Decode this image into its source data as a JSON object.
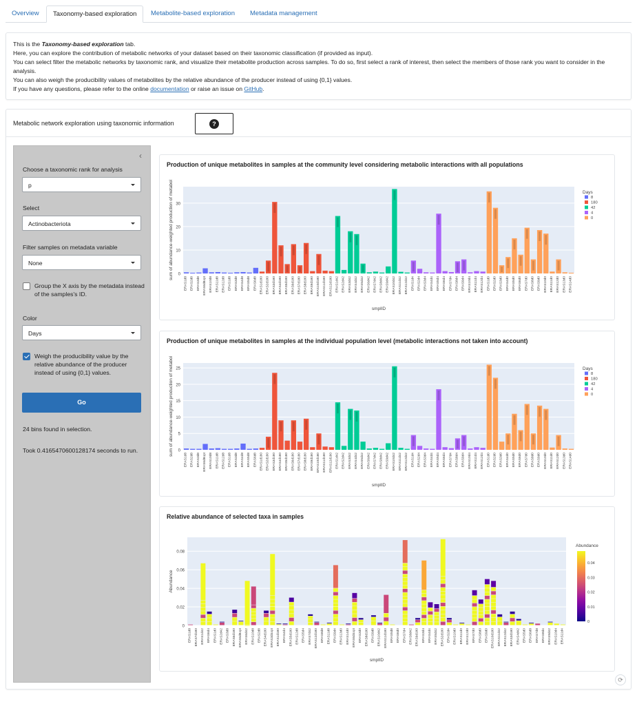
{
  "tabs": [
    {
      "label": "Overview",
      "active": false
    },
    {
      "label": "Taxonomy-based exploration",
      "active": true
    },
    {
      "label": "Metabolite-based exploration",
      "active": false
    },
    {
      "label": "Metadata management",
      "active": false
    }
  ],
  "info": {
    "line1_pre": "This is the ",
    "line1_em": "Taxonomy-based exploration",
    "line1_post": " tab.",
    "line2": "Here, you can explore the contribution of metabolic networks of your dataset based on their taxonomic classification (if provided as input).",
    "line3": "You can select filter the metabolic networks by taxonomic rank, and visualize their metabolite production across samples. To do so, first select a rank of interest, then select the members of those rank you want to consider in the analysis.",
    "line4": "You can also weigh the producibility values of metabolites by the relative abundance of the producer instead of using {0,1} values.",
    "line5_pre": "If you have any questions, please refer to the online ",
    "line5_link1": "documentation",
    "line5_mid": " or raise an issue on ",
    "line5_link2": "GitHub",
    "line5_post": "."
  },
  "main": {
    "title": "Metabolic network exploration using taxonomic information",
    "help_icon": "question-circle-icon"
  },
  "sidebar": {
    "collapse_icon": "chevron-left-icon",
    "rank_label": "Choose a taxonomic rank for analysis",
    "rank_value": "p",
    "select_label": "Select",
    "select_value": "Actinobacteriota",
    "filter_label": "Filter samples on metadata variable",
    "filter_value": "None",
    "group_label": "Group the X axis by the metadata instead of the samples's ID.",
    "group_checked": false,
    "color_label": "Color",
    "color_value": "Days",
    "weigh_label": "Weigh the producibility value by the relative abundance of the producer instead of using {0,1} values.",
    "weigh_checked": true,
    "go_label": "Go",
    "bins_text": "24 bins found in selection.",
    "took_text": "Took 0.4165470600128174 seconds to run."
  },
  "colors": {
    "accent": "#2a6fb5",
    "plot_bg": "#e5ecf6",
    "days_8": "#636efa",
    "days_180": "#ef553b",
    "days_42": "#00cc96",
    "days_4": "#ab63fa",
    "days_0": "#ffa15a"
  },
  "chart_data": [
    {
      "type": "bar",
      "title": "Production of unique metabolites in samples at the community level considering metabolic interactions with all populations",
      "xlabel": "smplID",
      "ylabel": "sum of abundance-weighted production of metabol",
      "ylim": [
        0,
        37
      ],
      "yticks": [
        0,
        10,
        20,
        30
      ],
      "legend_title": "Days",
      "legend": [
        {
          "name": "8",
          "color": "#636efa"
        },
        {
          "name": "180",
          "color": "#ef553b"
        },
        {
          "name": "42",
          "color": "#00cc96"
        },
        {
          "name": "4",
          "color": "#ab63fa"
        },
        {
          "name": "0",
          "color": "#ffa15a"
        }
      ],
      "categories": [
        "ERAS1d8",
        "ERAS2d8",
        "ERAS3d8",
        "ERAS6d8opt",
        "ERAS10d8",
        "ERAS11d8",
        "ERAS12d8",
        "ERAS1d8",
        "ERAS3d8",
        "ERAS4d8",
        "ERAS5d8",
        "ERAS6d8",
        "ERAS1d180",
        "ERAS2d180",
        "ERAS3d180",
        "ERAS4d180",
        "ERAS5d180",
        "ERAS6d180",
        "ERAS7d180",
        "ERAS8d180",
        "ERAS9d180",
        "ERAS10d180",
        "ERAS11d180",
        "ERAS12d180",
        "ERAS1d42",
        "ERAS2d42",
        "ERAS3d42",
        "ERAS4d42",
        "ERAS5d42",
        "ERAS6d42",
        "ERAS7d42",
        "ERAS8d42",
        "ERAS9d42",
        "ERAS10d42",
        "ERAS11d42",
        "ERAS12d42",
        "ERAS1d4",
        "ERAS2d4",
        "ERAS3d4",
        "ERAS4d4",
        "ERAS5d4",
        "ERAS6d4",
        "ERAS7d4",
        "ERAS8d4",
        "ERAS9d4",
        "ERAS10d4",
        "ERAS11d4",
        "ERAS12d4",
        "ERAS1d0",
        "ERAS2d0",
        "ERAS3d0",
        "ERAS4d0",
        "ERAS5d0",
        "ERAS6d0",
        "ERAS7d0",
        "ERAS8d0",
        "ERAS9d0",
        "ERAS10d0",
        "ERAS11d0",
        "ERAS12d0",
        "ERAS13d0",
        "ERAS14d0"
      ],
      "groups": [
        "8",
        "8",
        "8",
        "8",
        "8",
        "8",
        "8",
        "8",
        "8",
        "8",
        "8",
        "8",
        "180",
        "180",
        "180",
        "180",
        "180",
        "180",
        "180",
        "180",
        "180",
        "180",
        "180",
        "180",
        "42",
        "42",
        "42",
        "42",
        "42",
        "42",
        "42",
        "42",
        "42",
        "42",
        "42",
        "42",
        "4",
        "4",
        "4",
        "4",
        "4",
        "4",
        "4",
        "4",
        "4",
        "4",
        "4",
        "4",
        "0",
        "0",
        "0",
        "0",
        "0",
        "0",
        "0",
        "0",
        "0",
        "0",
        "0",
        "0",
        "0",
        "0"
      ],
      "values": [
        0.5,
        0.3,
        0.4,
        2.2,
        0.5,
        0.6,
        0.4,
        0.3,
        0.5,
        0.6,
        0.4,
        2.4,
        0.8,
        5.5,
        30.5,
        12.0,
        4.0,
        12.5,
        3.5,
        13.0,
        1.0,
        8.3,
        1.2,
        1.0,
        24.5,
        1.5,
        18.0,
        16.8,
        4.2,
        0.5,
        0.8,
        0.4,
        3.0,
        36.0,
        0.7,
        0.4,
        5.5,
        2.0,
        0.5,
        0.4,
        25.5,
        1.0,
        0.6,
        5.2,
        6.0,
        0.5,
        1.0,
        0.8,
        35.0,
        28.0,
        3.5,
        7.0,
        15.0,
        8.0,
        19.5,
        6.0,
        18.5,
        17.0,
        0.8,
        6.0,
        0.5,
        0.3
      ]
    },
    {
      "type": "bar",
      "title": "Production of unique metabolites in samples at the individual population level (metabolic interactions not taken into account)",
      "xlabel": "smplID",
      "ylabel": "sum of abundance-weighted production of metabol",
      "ylim": [
        0,
        26.5
      ],
      "yticks": [
        0,
        5,
        10,
        15,
        20,
        25
      ],
      "legend_title": "Days",
      "legend": [
        {
          "name": "8",
          "color": "#636efa"
        },
        {
          "name": "180",
          "color": "#ef553b"
        },
        {
          "name": "42",
          "color": "#00cc96"
        },
        {
          "name": "4",
          "color": "#ab63fa"
        },
        {
          "name": "0",
          "color": "#ffa15a"
        }
      ],
      "categories": [
        "ERAS1d8",
        "ERAS2d8",
        "ERAS3d8",
        "ERAS6d8opt",
        "ERAS10d8",
        "ERAS11d8",
        "ERAS12d8",
        "ERAS1d8",
        "ERAS3d8",
        "ERAS4d8",
        "ERAS5d8",
        "ERAS6d8",
        "ERAS1d180",
        "ERAS2d180",
        "ERAS3d180",
        "ERAS4d180",
        "ERAS5d180",
        "ERAS6d180",
        "ERAS7d180",
        "ERAS8d180",
        "ERAS9d180",
        "ERAS10d180",
        "ERAS11d180",
        "ERAS12d180",
        "ERAS1d42",
        "ERAS2d42",
        "ERAS3d42",
        "ERAS4d42",
        "ERAS5d42",
        "ERAS6d42",
        "ERAS7d42",
        "ERAS8d42",
        "ERAS9d42",
        "ERAS10d42",
        "ERAS11d42",
        "ERAS12d42",
        "ERAS1d4",
        "ERAS2d4",
        "ERAS3d4",
        "ERAS4d4",
        "ERAS5d4",
        "ERAS6d4",
        "ERAS7d4",
        "ERAS8d4",
        "ERAS9d4",
        "ERAS10d4",
        "ERAS11d4",
        "ERAS12d4",
        "ERAS1d0",
        "ERAS2d0",
        "ERAS3d0",
        "ERAS4d0",
        "ERAS5d0",
        "ERAS6d0",
        "ERAS7d0",
        "ERAS8d0",
        "ERAS9d0",
        "ERAS10d0",
        "ERAS11d0",
        "ERAS12d0",
        "ERAS13d0",
        "ERAS14d0"
      ],
      "groups": [
        "8",
        "8",
        "8",
        "8",
        "8",
        "8",
        "8",
        "8",
        "8",
        "8",
        "8",
        "8",
        "180",
        "180",
        "180",
        "180",
        "180",
        "180",
        "180",
        "180",
        "180",
        "180",
        "180",
        "180",
        "42",
        "42",
        "42",
        "42",
        "42",
        "42",
        "42",
        "42",
        "42",
        "42",
        "42",
        "42",
        "4",
        "4",
        "4",
        "4",
        "4",
        "4",
        "4",
        "4",
        "4",
        "4",
        "4",
        "4",
        "0",
        "0",
        "0",
        "0",
        "0",
        "0",
        "0",
        "0",
        "0",
        "0",
        "0",
        "0",
        "0",
        "0"
      ],
      "values": [
        0.4,
        0.3,
        0.3,
        1.8,
        0.4,
        0.5,
        0.3,
        0.3,
        0.4,
        1.9,
        0.3,
        0.4,
        0.6,
        4.0,
        23.5,
        9.0,
        2.8,
        9.0,
        2.5,
        9.5,
        0.8,
        5.0,
        1.0,
        0.8,
        14.5,
        1.2,
        12.5,
        12.0,
        2.5,
        0.4,
        0.6,
        0.3,
        2.0,
        25.5,
        0.6,
        0.3,
        4.5,
        1.2,
        0.4,
        0.3,
        18.5,
        0.8,
        0.5,
        3.5,
        4.5,
        0.4,
        0.8,
        0.6,
        26.0,
        22.0,
        2.5,
        5.0,
        11.0,
        6.0,
        14.0,
        5.0,
        13.5,
        12.5,
        0.7,
        4.5,
        0.4,
        0.3
      ]
    },
    {
      "type": "bar",
      "title": "Relative abundance of selected taxa in samples",
      "xlabel": "smplID",
      "ylabel": "Abundance",
      "ylim": [
        0,
        0.095
      ],
      "yticks": [
        0,
        0.02,
        0.04,
        0.06,
        0.08
      ],
      "colorbar_title": "Abundance",
      "colorbar_ticks": [
        0,
        0.01,
        0.02,
        0.03,
        0.04
      ],
      "categories": [
        "ERAS1d8",
        "ERAS7d180",
        "ERAS1d42",
        "ERAS6d4",
        "ERAS1d0",
        "ERAS2d42",
        "ERAS3d8",
        "ERAS6d180",
        "ERAS6d8opt",
        "ERAS6d42",
        "ERAS10d8",
        "ERAS2d8",
        "ERAS4d180",
        "ERAS3d4opt",
        "ERAS1d180",
        "ERAS4d4",
        "ERAS5d180",
        "ERAS12d8",
        "ERAS5d4",
        "ERAS7d42",
        "ERAS12d180",
        "ERAS8d8",
        "ERAS11d8",
        "ERAS9d4",
        "ERAS13d0",
        "ERAS14d0",
        "ERAS6d4opt",
        "ERAS3d0",
        "ERAS8d180",
        "ERAS9d8",
        "ERAS10d42",
        "ERAS11d180",
        "ERAS5d8",
        "ERAS6d0",
        "ERAS7d4",
        "ERAS8d42",
        "ERAS9d180",
        "ERAS3d4",
        "ERAS4d4",
        "ERAS5d42",
        "ERAS2d180",
        "ERAS2d4",
        "ERAS10d0",
        "ERAS11d0",
        "ERAS12d0",
        "ERAS7d0",
        "ERAS8d0",
        "ERAS9d0",
        "ERAS10d180",
        "ERAS11d42",
        "ERAS12d42",
        "ERAS3d180",
        "ERAS4d42",
        "ERAS5d0",
        "ERAS6d8",
        "ERAS7d8",
        "ERAS8d4",
        "ERAS9d42",
        "ERAS10d4",
        "ERAS11d4"
      ],
      "values": [
        0.001,
        0,
        0.067,
        0.015,
        0.001,
        0.004,
        0,
        0.017,
        0.005,
        0.048,
        0.042,
        0,
        0.016,
        0.077,
        0.002,
        0.002,
        0.03,
        0,
        0,
        0.012,
        0.004,
        0.001,
        0.003,
        0.065,
        0.001,
        0.002,
        0.035,
        0.008,
        0,
        0.011,
        0.003,
        0.033,
        0.001,
        0,
        0.092,
        0.001,
        0.008,
        0.07,
        0.025,
        0.023,
        0.093,
        0.008,
        0.001,
        0.003,
        0.001,
        0.038,
        0.028,
        0.05,
        0.048,
        0.012,
        0.004,
        0.015,
        0.007,
        0.001,
        0.003,
        0.002,
        0,
        0.004,
        0.002,
        0.001
      ],
      "top_values": [
        0,
        0,
        0.04,
        0.003,
        0,
        0.001,
        0,
        0.004,
        0.001,
        0.048,
        0.02,
        0,
        0.003,
        0.045,
        0.001,
        0.001,
        0.005,
        0,
        0,
        0.002,
        0.001,
        0,
        0.001,
        0.025,
        0,
        0.001,
        0.006,
        0.002,
        0,
        0.002,
        0.001,
        0.02,
        0,
        0,
        0.025,
        0,
        0.002,
        0.032,
        0.006,
        0.005,
        0.04,
        0.002,
        0,
        0.001,
        0,
        0.006,
        0.005,
        0.006,
        0.007,
        0.003,
        0.001,
        0.003,
        0.002,
        0,
        0.001,
        0,
        0,
        0.001,
        0,
        0
      ]
    }
  ]
}
